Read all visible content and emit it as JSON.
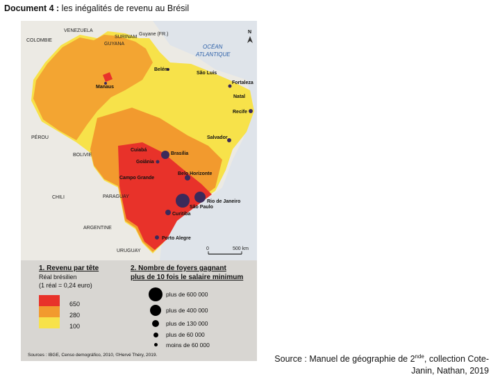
{
  "title": {
    "prefix": "Document 4 :",
    "text": "les inégalités de revenu au Brésil"
  },
  "map": {
    "ocean_label_line1": "OCÉAN",
    "ocean_label_line2": "ATLANTIQUE",
    "north_symbol": "N",
    "countries": [
      "VENEZUELA",
      "SURINAM",
      "Guyane (FR.)",
      "GUYANA",
      "COLOMBIE",
      "PÉROU",
      "BOLIVIE",
      "CHILI",
      "PARAGUAY",
      "ARGENTINE",
      "URUGUAY"
    ],
    "cities": [
      "Belém",
      "São Luis",
      "Fortaleza",
      "Manaus",
      "Natal",
      "Recife",
      "Salvador",
      "Brasília",
      "Cuiabá",
      "Goiânia",
      "Belo Horizonte",
      "Campo Grande",
      "Rio de Janeiro",
      "São Paulo",
      "Curitiba",
      "Porto Alegre"
    ],
    "scale": {
      "zero": "0",
      "end": "500 km"
    },
    "colors": {
      "high": "#e8322a",
      "mid": "#f29a2e",
      "low": "#f7e24a",
      "dot": "#3b2a5a"
    }
  },
  "legend": {
    "revenue_title": "1. Revenu par tête",
    "revenue_unit": "Réal brésilien",
    "revenue_rate": "(1 réal = 0,24 euro)",
    "classes": [
      "650",
      "280",
      "100"
    ],
    "households_title_line1": "2. Nombre de foyers gagnant",
    "households_title_line2": "plus de 10 fois le salaire minimum",
    "sizes": [
      "plus de 600 000",
      "plus de 400 000",
      "plus de 130 000",
      "plus de 60 000",
      "moins de 60 000"
    ]
  },
  "sources_note": "Sources : IBGE, Censo demográfico, 2010, ©Hervé Théry, 2019.",
  "source": {
    "line1_prefix": "Source : Manuel de géographie de 2",
    "line1_sup": "nde",
    "line1_suffix": ", collection Cote-",
    "line2": "Janin, Nathan, 2019"
  }
}
